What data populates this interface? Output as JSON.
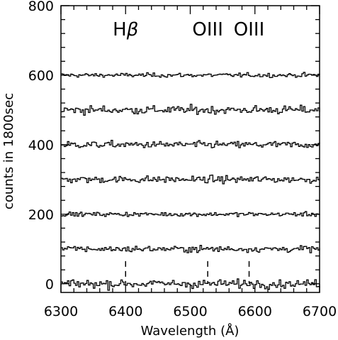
{
  "chart_data": {
    "type": "line",
    "xlabel": "Wavelength (Å)",
    "ylabel": "counts in 1800sec",
    "xlim": [
      6300,
      6700
    ],
    "ylim": [
      -25,
      800
    ],
    "x_ticks": [
      6300,
      6400,
      6500,
      6600,
      6700
    ],
    "y_ticks": [
      0,
      200,
      400,
      600,
      800
    ],
    "x_minor_step": 20,
    "y_minor_step": 40,
    "series_style": "step",
    "noise_step": 2.5,
    "series": [
      {
        "offset": 600,
        "noise_amplitude": 3.0
      },
      {
        "offset": 500,
        "noise_amplitude": 6.0
      },
      {
        "offset": 400,
        "noise_amplitude": 5.0
      },
      {
        "offset": 300,
        "noise_amplitude": 5.0
      },
      {
        "offset": 200,
        "noise_amplitude": 3.0
      },
      {
        "offset": 100,
        "noise_amplitude": 4.5
      },
      {
        "offset": 0,
        "noise_amplitude": 6.0
      }
    ],
    "annotations": [
      {
        "label_prefix": "H",
        "label_symbol": "β",
        "x": 6400,
        "line_from": 65,
        "line_to": 0
      },
      {
        "label": "OIII",
        "x": 6527,
        "line_from": 65,
        "line_to": 0
      },
      {
        "label": "OIII",
        "x": 6591,
        "line_from": 65,
        "line_to": 0
      }
    ]
  }
}
